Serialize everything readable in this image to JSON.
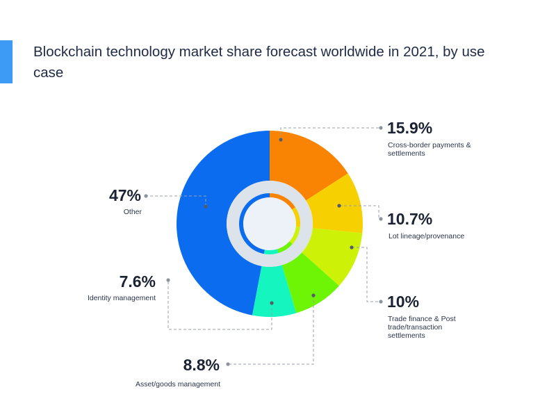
{
  "title": "Blockchain technology market share forecast worldwide in 2021, by use case",
  "colors": {
    "accent": "#3d9bf5",
    "leader": "#9aa0aa",
    "ring_bg": "#dde3ea",
    "hole": "#edf1f8"
  },
  "chart_data": {
    "type": "pie",
    "variant": "donut",
    "unit": "%",
    "title": "Blockchain technology market share forecast worldwide in 2021, by use case",
    "legend": "none",
    "slices": [
      {
        "label_lines": [
          "Cross-border payments &",
          "settlements"
        ],
        "value": 15.9,
        "value_text": "15.9%",
        "color": "#f98404"
      },
      {
        "label_lines": [
          "Lot lineage/provenance"
        ],
        "value": 10.7,
        "value_text": "10.7%",
        "color": "#f6d000"
      },
      {
        "label_lines": [
          "Trade finance & Post",
          "trade/transaction",
          "settlements"
        ],
        "value": 10,
        "value_text": "10%",
        "color": "#cdf208"
      },
      {
        "label_lines": [
          "Asset/goods management"
        ],
        "value": 8.8,
        "value_text": "8.8%",
        "color": "#6ef506"
      },
      {
        "label_lines": [
          "Identity management"
        ],
        "value": 7.6,
        "value_text": "7.6%",
        "color": "#14f5c0"
      },
      {
        "label_lines": [
          "Other"
        ],
        "value": 47,
        "value_text": "47%",
        "color": "#0b6cf0"
      }
    ]
  }
}
